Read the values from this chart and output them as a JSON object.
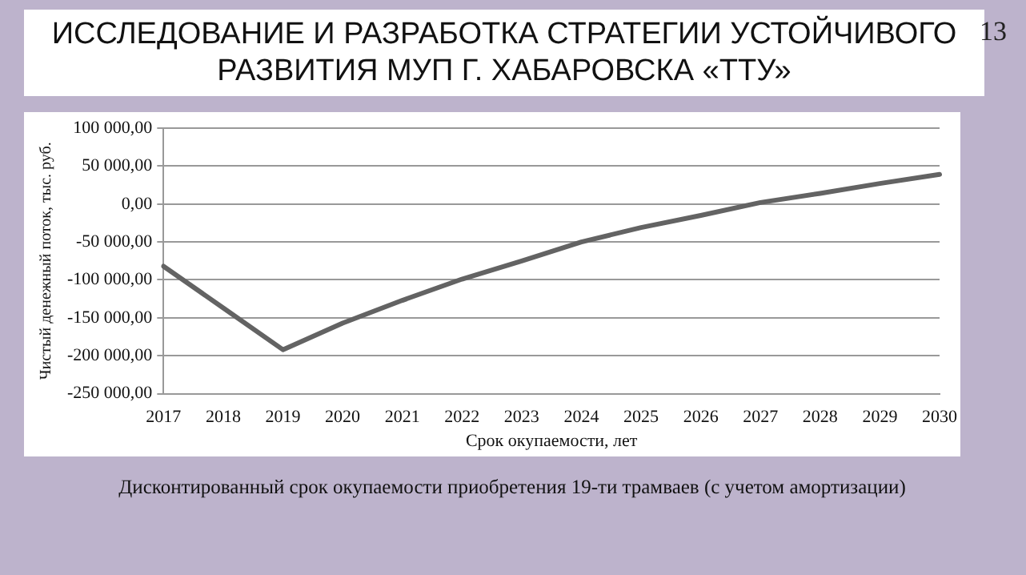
{
  "chart_data": {
    "type": "line",
    "title": "ИССЛЕДОВАНИЕ И РАЗРАБОТКА СТРАТЕГИИ УСТОЙЧИВОГО РАЗВИТИЯ МУП Г. ХАБАРОВСКА «ТТУ»",
    "xlabel": "Срок окупаемости, лет",
    "ylabel": "Чистый денежный поток, тыс. руб.",
    "categories": [
      "2017",
      "2018",
      "2019",
      "2020",
      "2021",
      "2022",
      "2023",
      "2024",
      "2025",
      "2026",
      "2027",
      "2028",
      "2029",
      "2030"
    ],
    "series": [
      {
        "color": "#636363",
        "values": [
          -82000,
          -137000,
          -192000,
          -157000,
          -127000,
          -99000,
          -75000,
          -50000,
          -31000,
          -15000,
          2000,
          14000,
          27000,
          39000
        ]
      }
    ],
    "ylim": [
      -250000,
      100000
    ],
    "yticks": [
      {
        "value": -250000,
        "label": "-250 000,00"
      },
      {
        "value": -200000,
        "label": "-200 000,00"
      },
      {
        "value": -150000,
        "label": "-150 000,00"
      },
      {
        "value": -100000,
        "label": "-100 000,00"
      },
      {
        "value": -50000,
        "label": "-50 000,00"
      },
      {
        "value": 0,
        "label": "0,00"
      },
      {
        "value": 50000,
        "label": "50 000,00"
      },
      {
        "value": 100000,
        "label": "100 000,00"
      }
    ],
    "grid": "y",
    "legend": false,
    "marker": "none",
    "line_style": "solid",
    "annotations": [
      "13",
      "Дисконтированный срок окупаемости приобретения 19-ти трамваев (с учетом амортизации)"
    ]
  }
}
